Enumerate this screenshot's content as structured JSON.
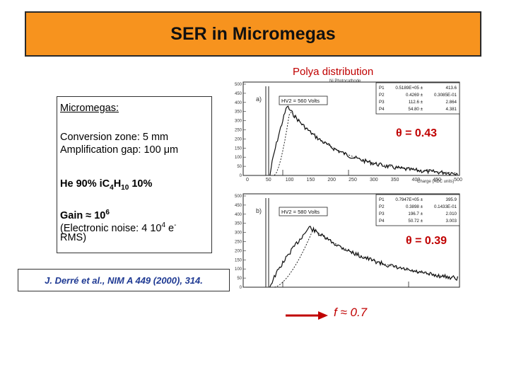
{
  "title": "SER in Micromegas",
  "polya_label": "Polya distribution",
  "info": {
    "heading": "Micromegas:",
    "line1": "Conversion zone: 5 mm",
    "line2": "Amplification gap: 100 μm",
    "gas_he": "He 90% iC",
    "gas_sub1": "4",
    "gas_h": "H",
    "gas_sub2": "10",
    "gas_pct": " 10%",
    "gain": "Gain ≈ 10",
    "gain_exp": "6",
    "noise_a": "(Electronic noise: 4 10",
    "noise_exp": "4",
    "noise_b": " e",
    "noise_exp2": "-",
    "noise_c": "RMS)"
  },
  "reference": "J. Derré et al., NIM A 449 (2000), 314.",
  "theta_a": "θ = 0.43",
  "theta_b": "θ = 0.39",
  "f_value": "f ≈ 0.7",
  "plot_a": {
    "panel": "a)",
    "photocathode": "Ni Photocathode",
    "hv": "HV2 = 560 Volts",
    "params": [
      [
        "P1",
        "0.5189E+05 ±",
        "413.6"
      ],
      [
        "P2",
        "0.4269 ±",
        "0.3085E-01"
      ],
      [
        "P3",
        "112.6 ±",
        "2.864"
      ],
      [
        "P4",
        "54.80 ±",
        "4.381"
      ]
    ]
  },
  "plot_b": {
    "panel": "b)",
    "hv": "HV2 = 580 Volts",
    "params": [
      [
        "P1",
        "0.7947E+05 ±",
        "395.9"
      ],
      [
        "P2",
        "0.3898 ±",
        "0.1433E-01"
      ],
      [
        "P3",
        "196.7 ±",
        "2.010"
      ],
      [
        "P4",
        "50.72 ±",
        "3.003"
      ]
    ]
  },
  "axis": {
    "y_ticks": [
      "500",
      "450",
      "400",
      "350",
      "300",
      "250",
      "200",
      "150",
      "100",
      "50",
      "0"
    ],
    "x_ticks": [
      "0",
      "50",
      "100",
      "150",
      "200",
      "250",
      "300",
      "350",
      "400",
      "450",
      "500"
    ],
    "x_label": "Charge (ADC units)"
  },
  "colors": {
    "title_bg": "#f7931e",
    "accent": "#c00000",
    "reference": "#1f3a93"
  }
}
